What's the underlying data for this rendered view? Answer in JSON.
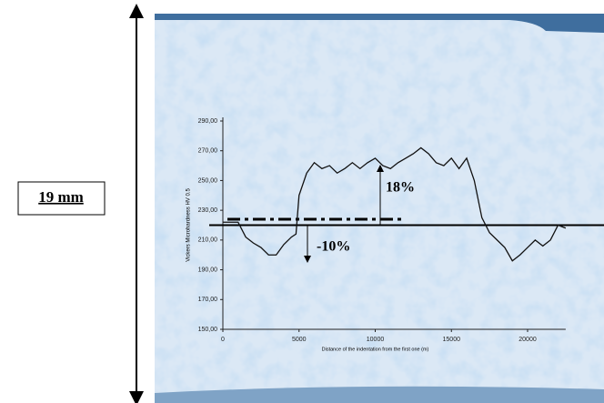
{
  "chart_data": {
    "type": "line",
    "y_label": "Vickers Microhardness HV 0.5",
    "x_label": "Distance of the indentation from the first one (m)",
    "dimension_label": "19 mm",
    "annotations": [
      "18%",
      "-10%"
    ],
    "x": [
      0,
      1000,
      1500,
      2000,
      2500,
      3000,
      3500,
      4000,
      4500,
      4800,
      5000,
      5500,
      6000,
      6500,
      7000,
      7500,
      8000,
      8500,
      9000,
      9500,
      10000,
      10500,
      11000,
      11500,
      12000,
      12500,
      13000,
      13500,
      14000,
      14500,
      15000,
      15500,
      16000,
      16500,
      17000,
      17500,
      18000,
      18500,
      19000,
      19500,
      20000,
      20500,
      21000,
      21500,
      22000,
      22500
    ],
    "series": [
      {
        "color": "#111111",
        "values": [
          222,
          222,
          212,
          208,
          205,
          200,
          200,
          207,
          212,
          214,
          240,
          255,
          262,
          258,
          260,
          255,
          258,
          262,
          258,
          262,
          265,
          260,
          258,
          262,
          265,
          268,
          272,
          268,
          262,
          260,
          265,
          258,
          265,
          250,
          225,
          215,
          210,
          205,
          196,
          200,
          205,
          210,
          206,
          210,
          220,
          218
        ]
      }
    ],
    "hlines": [
      {
        "value": 220,
        "style": "solid"
      },
      {
        "value": 224,
        "style": "dashed"
      }
    ],
    "xlim": [
      0,
      22500
    ],
    "xticks": [
      0,
      5000,
      10000,
      15000,
      20000
    ],
    "ylim": [
      150,
      290
    ],
    "yticks": [
      {
        "value": 150,
        "label": "150,00"
      },
      {
        "value": 170,
        "label": "170,00"
      },
      {
        "value": 190,
        "label": "190,00"
      },
      {
        "value": 210,
        "label": "210,00"
      },
      {
        "value": 230,
        "label": "230,00"
      },
      {
        "value": 250,
        "label": "250,00"
      },
      {
        "value": 270,
        "label": "270,00"
      },
      {
        "value": 290,
        "label": "290,00"
      }
    ]
  }
}
